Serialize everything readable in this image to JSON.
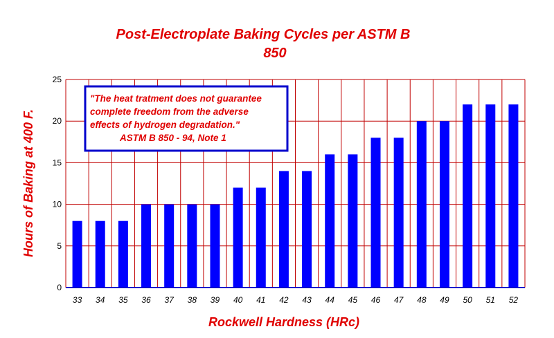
{
  "chart_data": {
    "type": "bar",
    "title": [
      "Post-Electroplate Baking Cycles per ASTM B",
      "850"
    ],
    "xlabel": "Rockwell Hardness (HRc)",
    "ylabel": "Hours of Baking at 400 F.",
    "categories": [
      "33",
      "34",
      "35",
      "36",
      "37",
      "38",
      "39",
      "40",
      "41",
      "42",
      "43",
      "44",
      "45",
      "46",
      "47",
      "48",
      "49",
      "50",
      "51",
      "52"
    ],
    "values": [
      8,
      8,
      8,
      10,
      10,
      10,
      10,
      12,
      12,
      14,
      14,
      16,
      16,
      18,
      18,
      20,
      20,
      22,
      22,
      22
    ],
    "ylim": [
      0,
      25
    ],
    "yticks": [
      "0",
      "5",
      "10",
      "15",
      "20",
      "25"
    ],
    "grid": true,
    "annotation": {
      "lines": [
        "\"The heat tratment does not guarantee",
        "complete freedom from the adverse",
        "effects of hydrogen degradation.\"",
        "ASTM B 850 - 94, Note 1"
      ]
    },
    "colors": {
      "bar": "#0000ff",
      "grid": "#c00000",
      "title": "#e00000",
      "frame": "#0000cc",
      "text": "#000000"
    }
  }
}
